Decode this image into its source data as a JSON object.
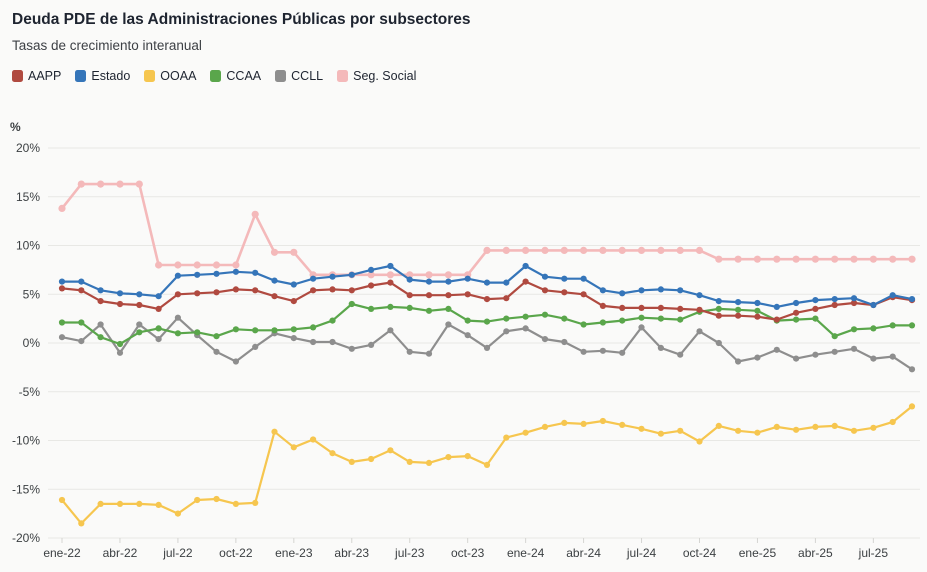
{
  "page": {
    "background": "#fafaf9"
  },
  "header": {
    "title": "Deuda PDE de las Administraciones Públicas por subsectores",
    "subtitle": "Tasas de crecimiento interanual"
  },
  "chart_data": {
    "type": "line",
    "title": "Deuda PDE de las Administraciones Públicas por subsectores",
    "subtitle": "Tasas de crecimiento interanual",
    "unit_label": "%",
    "ylabel": "%",
    "ylim": [
      -20,
      20
    ],
    "y_tick_step": 5,
    "y_tick_suffix": "%",
    "grid": "horizontal",
    "legend_position": "top",
    "x_tick_every": 3,
    "x_tick_labels": [
      "ene-22",
      "abr-22",
      "jul-22",
      "oct-22",
      "ene-23",
      "abr-23",
      "jul-23",
      "oct-23",
      "ene-24",
      "abr-24",
      "jul-24",
      "oct-24",
      "ene-25",
      "abr-25",
      "jul-25"
    ],
    "categories": [
      "ene-22",
      "feb-22",
      "mar-22",
      "abr-22",
      "may-22",
      "jun-22",
      "jul-22",
      "ago-22",
      "sep-22",
      "oct-22",
      "nov-22",
      "dic-22",
      "ene-23",
      "feb-23",
      "mar-23",
      "abr-23",
      "may-23",
      "jun-23",
      "jul-23",
      "ago-23",
      "sep-23",
      "oct-23",
      "nov-23",
      "dic-23",
      "ene-24",
      "feb-24",
      "mar-24",
      "abr-24",
      "may-24",
      "jun-24",
      "jul-24",
      "ago-24",
      "sep-24",
      "oct-24",
      "nov-24",
      "dic-24",
      "ene-25",
      "feb-25",
      "mar-25",
      "abr-25",
      "may-25",
      "jun-25",
      "jul-25",
      "ago-25",
      "sep-25"
    ],
    "series": [
      {
        "name": "AAPP",
        "color": "#b04a40",
        "values": [
          5.6,
          5.4,
          4.3,
          4.0,
          3.9,
          3.5,
          5.0,
          5.1,
          5.2,
          5.5,
          5.4,
          4.8,
          4.3,
          5.4,
          5.5,
          5.4,
          5.9,
          6.2,
          4.9,
          4.9,
          4.9,
          5.0,
          4.5,
          4.6,
          6.3,
          5.4,
          5.2,
          5.0,
          3.8,
          3.6,
          3.6,
          3.6,
          3.5,
          3.4,
          2.8,
          2.8,
          2.7,
          2.4,
          3.1,
          3.5,
          3.9,
          4.1,
          3.9,
          4.7,
          4.4
        ]
      },
      {
        "name": "Estado",
        "color": "#3575b9",
        "values": [
          6.3,
          6.3,
          5.4,
          5.1,
          5.0,
          4.8,
          6.9,
          7.0,
          7.1,
          7.3,
          7.2,
          6.4,
          6.0,
          6.6,
          6.8,
          7.0,
          7.5,
          7.9,
          6.5,
          6.3,
          6.3,
          6.6,
          6.2,
          6.2,
          7.9,
          6.8,
          6.6,
          6.6,
          5.4,
          5.1,
          5.4,
          5.5,
          5.4,
          4.9,
          4.3,
          4.2,
          4.1,
          3.7,
          4.1,
          4.4,
          4.5,
          4.6,
          3.9,
          4.9,
          4.5
        ]
      },
      {
        "name": "OOAA",
        "color": "#f6c64f",
        "values": [
          -16.1,
          -18.5,
          -16.5,
          -16.5,
          -16.5,
          -16.6,
          -17.5,
          -16.1,
          -16.0,
          -16.5,
          -16.4,
          -9.1,
          -10.7,
          -9.9,
          -11.3,
          -12.2,
          -11.9,
          -11.0,
          -12.2,
          -12.3,
          -11.7,
          -11.6,
          -12.5,
          -9.7,
          -9.2,
          -8.6,
          -8.2,
          -8.3,
          -8.0,
          -8.4,
          -8.8,
          -9.3,
          -9.0,
          -10.1,
          -8.5,
          -9.0,
          -9.2,
          -8.6,
          -8.9,
          -8.6,
          -8.5,
          -9.0,
          -8.7,
          -8.1,
          -6.5
        ]
      },
      {
        "name": "CCAA",
        "color": "#5aa64b",
        "values": [
          2.1,
          2.1,
          0.6,
          -0.1,
          1.1,
          1.5,
          1.0,
          1.1,
          0.7,
          1.4,
          1.3,
          1.3,
          1.4,
          1.6,
          2.3,
          4.0,
          3.5,
          3.7,
          3.6,
          3.3,
          3.5,
          2.3,
          2.2,
          2.5,
          2.7,
          2.9,
          2.5,
          1.9,
          2.1,
          2.3,
          2.6,
          2.5,
          2.4,
          3.2,
          3.5,
          3.4,
          3.3,
          2.3,
          2.4,
          2.5,
          0.7,
          1.4,
          1.5,
          1.8,
          1.8
        ]
      },
      {
        "name": "CCLL",
        "color": "#8e8e8e",
        "values": [
          0.6,
          0.2,
          1.9,
          -1.0,
          1.9,
          0.4,
          2.6,
          0.8,
          -0.9,
          -1.9,
          -0.4,
          1.0,
          0.5,
          0.1,
          0.1,
          -0.6,
          -0.2,
          1.3,
          -0.9,
          -1.1,
          1.9,
          0.8,
          -0.5,
          1.2,
          1.5,
          0.4,
          0.1,
          -0.9,
          -0.8,
          -1.0,
          1.6,
          -0.5,
          -1.2,
          1.2,
          0.0,
          -1.9,
          -1.5,
          -0.7,
          -1.6,
          -1.2,
          -0.9,
          -0.6,
          -1.6,
          -1.4,
          -2.7
        ]
      },
      {
        "name": "Seg. Social",
        "color": "#f4b9ba",
        "values": [
          13.8,
          16.3,
          16.3,
          16.3,
          16.3,
          8.0,
          8.0,
          8.0,
          8.0,
          8.0,
          13.2,
          9.3,
          9.3,
          7.0,
          7.0,
          7.0,
          7.0,
          7.0,
          7.0,
          7.0,
          7.0,
          7.0,
          9.5,
          9.5,
          9.5,
          9.5,
          9.5,
          9.5,
          9.5,
          9.5,
          9.5,
          9.5,
          9.5,
          9.5,
          8.6,
          8.6,
          8.6,
          8.6,
          8.6,
          8.6,
          8.6,
          8.6,
          8.6,
          8.6,
          8.6
        ]
      }
    ]
  }
}
